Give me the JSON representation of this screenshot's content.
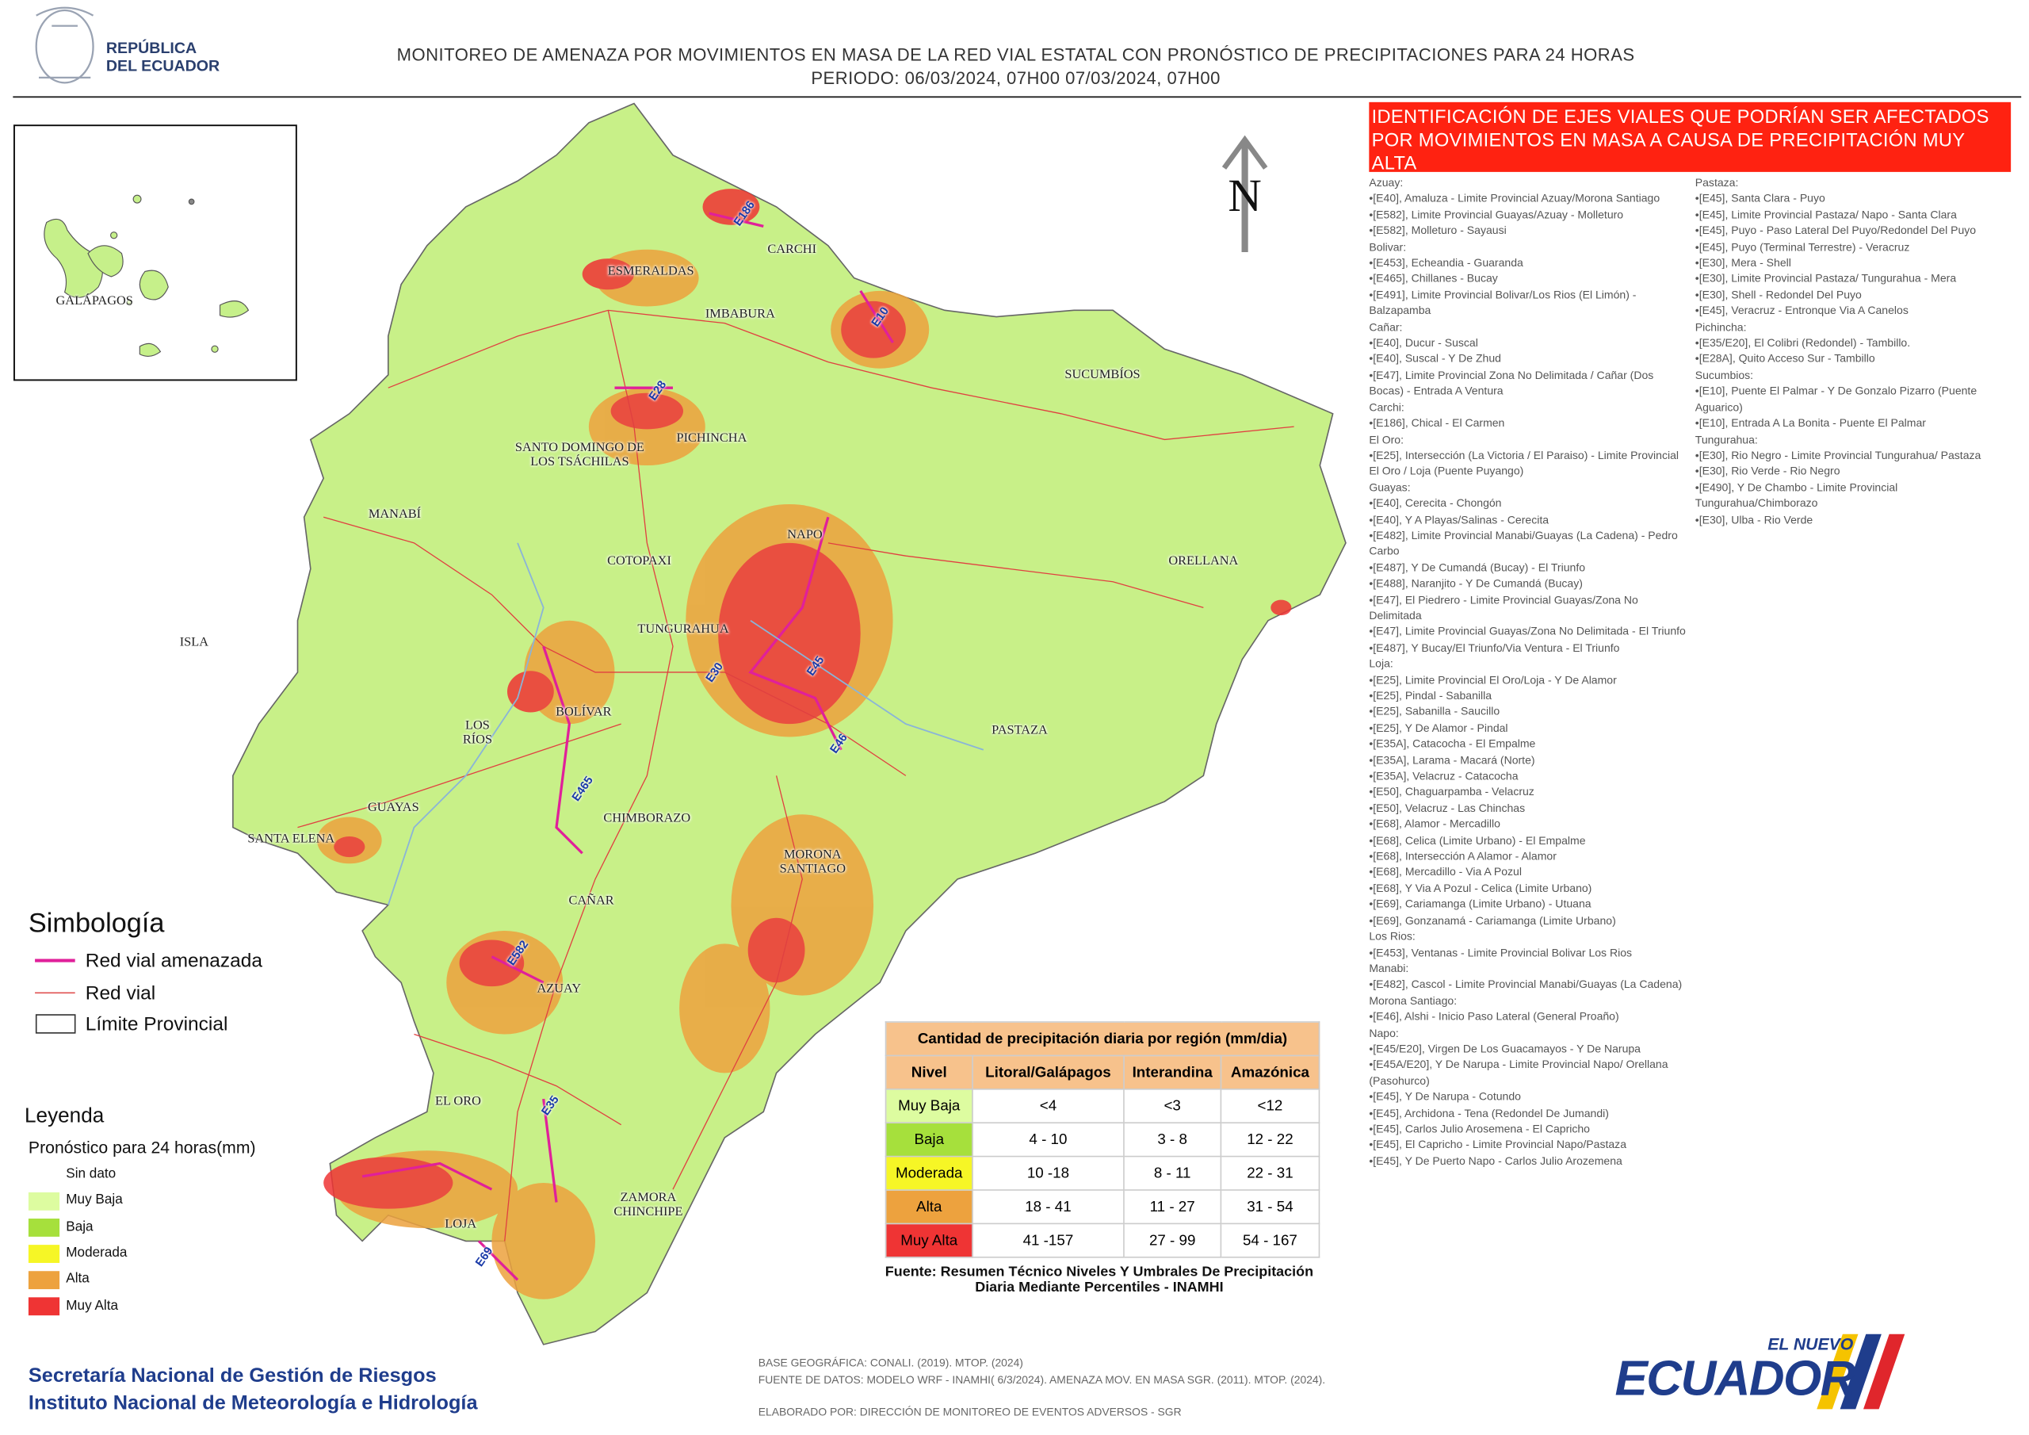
{
  "header": {
    "country": [
      "REPÚBLICA",
      "DEL ECUADOR"
    ],
    "title": "MONITOREO DE AMENAZA POR MOVIMIENTOS EN MASA DE LA RED VIAL  ESTATAL  CON PRONÓSTICO  DE  PRECIPITACIONES PARA 24 HORAS",
    "period": "PERIODO: 06/03/2024, 07H00 07/03/2024, 07H00"
  },
  "inset": {
    "label": "GALÁPAGOS"
  },
  "north": "N",
  "map": {
    "provinces": [
      "ESMERALDAS",
      "CARCHI",
      "IMBABURA",
      "SUCUMBÍOS",
      "SANTO DOMINGO DE LOS TSÁCHILAS",
      "PICHINCHA",
      "MANABÍ",
      "NAPO",
      "ORELLANA",
      "COTOPAXI",
      "TUNGURAHUA",
      "ISLA",
      "BOLÍVAR",
      "LOS RÍOS",
      "PASTAZA",
      "GUAYAS",
      "CHIMBORAZO",
      "SANTA ELENA",
      "MORONA SANTIAGO",
      "CAÑAR",
      "AZUAY",
      "EL ORO",
      "ZAMORA CHINCHIPE",
      "LOJA"
    ],
    "roads": [
      "E186",
      "E10",
      "E28",
      "E30",
      "E45",
      "E46",
      "E465",
      "E582",
      "E35",
      "E69"
    ]
  },
  "roads_panel": {
    "title": "IDENTIFICACIÓN DE EJES VIALES QUE PODRÍAN SER AFECTADOS POR MOVIMIENTOS EN MASA A CAUSA DE PRECIPITACIÓN MUY ALTA",
    "columns": [
      [
        {
          "province": "Azuay:",
          "roads": [
            "[E40], Amaluza - Limite Provincial Azuay/Morona Santiago",
            "[E582], Limite Provincial Guayas/Azuay - Molleturo",
            "[E582], Molleturo - Sayausi"
          ]
        },
        {
          "province": "Bolivar:",
          "roads": [
            "[E453], Echeandia - Guaranda",
            "[E465], Chillanes - Bucay",
            "[E491], Limite Provincial Bolivar/Los Rios (El Limón) - Balzapamba"
          ]
        },
        {
          "province": "Cañar:",
          "roads": [
            "[E40], Ducur - Suscal",
            "[E40], Suscal - Y De Zhud",
            "[E47], Limite Provincial Zona No Delimitada / Cañar (Dos Bocas) - Entrada  A Ventura"
          ]
        },
        {
          "province": "Carchi:",
          "roads": [
            "[E186], Chical - El Carmen"
          ]
        },
        {
          "province": "El Oro:",
          "roads": [
            "[E25], Intersección (La Victoria / El Paraiso) - Limite Provincial El Oro / Loja (Puente Puyango)"
          ]
        },
        {
          "province": "Guayas:",
          "roads": [
            "[E40], Cerecita - Chongón",
            "[E40], Y A Playas/Salinas - Cerecita",
            "[E482], Limite Provincial Manabi/Guayas (La Cadena) - Pedro Carbo",
            "[E487], Y De Cumandá (Bucay) - El Triunfo",
            "[E488], Naranjito - Y De Cumandá (Bucay)",
            "[E47], El Piedrero - Limite Provincial Guayas/Zona No Delimitada",
            "[E47], Limite Provincial Guayas/Zona No Delimitada - El Triunfo",
            "[E487], Y Bucay/El Triunfo/Via Ventura - El Triunfo"
          ]
        },
        {
          "province": "Loja:",
          "roads": [
            "[E25], Limite Provincial El Oro/Loja - Y De Alamor",
            "[E25], Pindal - Sabanilla",
            "[E25], Sabanilla - Saucillo",
            "[E25], Y De Alamor - Pindal",
            "[E35A], Catacocha - El Empalme",
            "[E35A], Larama - Macará (Norte)",
            "[E35A], Velacruz - Catacocha",
            "[E50], Chaguarpamba - Velacruz",
            "[E50], Velacruz - Las Chinchas",
            "[E68], Alamor - Mercadillo",
            "[E68], Celica (Limite Urbano) - El Empalme",
            "[E68], Intersección A  Alamor - Alamor",
            "[E68], Mercadillo - Via  A Pozul",
            "[E68], Y Via A Pozul - Celica (Limite Urbano)",
            "[E69], Cariamanga (Limite Urbano) - Utuana",
            "[E69], Gonzanamá - Cariamanga (Limite Urbano)"
          ]
        },
        {
          "province": "Los Rios:",
          "roads": [
            "[E453], Ventanas - Limite Provincial Bolivar Los Rios"
          ]
        },
        {
          "province": "Manabi:",
          "roads": [
            "[E482], Cascol - Limite Provincial Manabi/Guayas (La Cadena)"
          ]
        },
        {
          "province": "Morona Santiago:",
          "roads": [
            "[E46], Alshi - Inicio Paso Lateral (General Proaño)"
          ]
        },
        {
          "province": "Napo:",
          "roads": [
            "[E45/E20], Virgen De Los Guacamayos - Y De Narupa",
            "[E45A/E20], Y De Narupa - Limite Provincial Napo/ Orellana (Pasohurco)",
            "[E45], Y De Narupa - Cotundo",
            "[E45], Archidona - Tena (Redondel De Jumandi)",
            "[E45], Carlos Julio Arosemena - El Capricho",
            "[E45], El Capricho - Limite Provincial Napo/Pastaza",
            "[E45], Y De Puerto Napo - Carlos Julio Arozemena"
          ]
        }
      ],
      [
        {
          "province": "Pastaza:",
          "roads": [
            "[E45], Santa Clara - Puyo",
            "[E45], Limite Provincial Pastaza/ Napo - Santa Clara",
            "[E45], Puyo - Paso Lateral Del Puyo/Redondel Del Puyo",
            "[E45], Puyo (Terminal Terrestre) - Veracruz",
            "[E30], Mera - Shell",
            "[E30], Limite Provincial Pastaza/ Tungurahua - Mera",
            "[E30], Shell - Redondel Del Puyo",
            "[E45], Veracruz - Entronque Via A Canelos"
          ]
        },
        {
          "province": "Pichincha:",
          "roads": [
            "[E35/E20], El Colibri (Redondel) - Tambillo.",
            "[E28A], Quito Acceso Sur - Tambillo"
          ]
        },
        {
          "province": "Sucumbios:",
          "roads": [
            "[E10], Puente El Palmar - Y De Gonzalo Pizarro (Puente Aguarico)",
            "[E10], Entrada A La Bonita - Puente El Palmar"
          ]
        },
        {
          "province": "Tungurahua:",
          "roads": [
            "[E30], Rio Negro - Limite Provincial Tungurahua/ Pastaza",
            "[E30], Rio Verde - Rio Negro",
            "[E490], Y De Chambo - Limite Provincial Tungurahua/Chimborazo",
            "[E30], Ulba - Rio Verde"
          ]
        }
      ]
    ]
  },
  "symbology": {
    "title": "Simbología",
    "items": [
      "Red vial amenazada",
      "Red vial",
      "Límite Provincial"
    ]
  },
  "legend": {
    "title": "Leyenda",
    "subtitle": "Pronóstico para 24 horas(mm)",
    "items": [
      {
        "label": "Sin dato"
      },
      {
        "label": "Muy Baja",
        "color": "#ddfca0"
      },
      {
        "label": "Baja",
        "color": "#a6e03c"
      },
      {
        "label": "Moderada",
        "color": "#f6f626"
      },
      {
        "label": "Alta",
        "color": "#eda23e"
      },
      {
        "label": "Muy Alta",
        "color": "#ef3434"
      }
    ]
  },
  "table": {
    "title": "Cantidad de precipitación diaria por región (mm/dia)",
    "header": [
      "Nivel",
      "Litoral/Galápagos",
      "Interandina",
      "Amazónica"
    ],
    "rows": [
      [
        "Muy Baja",
        "<4",
        "<3",
        "<12"
      ],
      [
        "Baja",
        "4 - 10",
        "3 - 8",
        "12 - 22"
      ],
      [
        "Moderada",
        "10 -18",
        "8 - 11",
        "22 - 31"
      ],
      [
        "Alta",
        "18 - 41",
        "11 - 27",
        "31 - 54"
      ],
      [
        "Muy Alta",
        "41 -157",
        "27 - 99",
        "54 - 167"
      ]
    ],
    "source": "Fuente: Resumen Técnico Niveles Y Umbrales De Precipitación Diaria Mediante Percentiles - INAMHI"
  },
  "credits": [
    "BASE GEOGRÁFICA: CONALI. (2019). MTOP. (2024)",
    "FUENTE DE DATOS: MODELO WRF - INAMHI( 6/3/2024).  AMENAZA MOV. EN MASA SGR. (2011). MTOP. (2024).",
    "ELABORADO POR: DIRECCIÓN DE MONITOREO DE EVENTOS ADVERSOS - SGR"
  ],
  "institutions": [
    "Secretaría Nacional de Gestión de Riesgos",
    "Instituto Nacional de Meteorología e Hidrología"
  ],
  "logo": [
    "EL NUEVO",
    "ECUADOR"
  ]
}
